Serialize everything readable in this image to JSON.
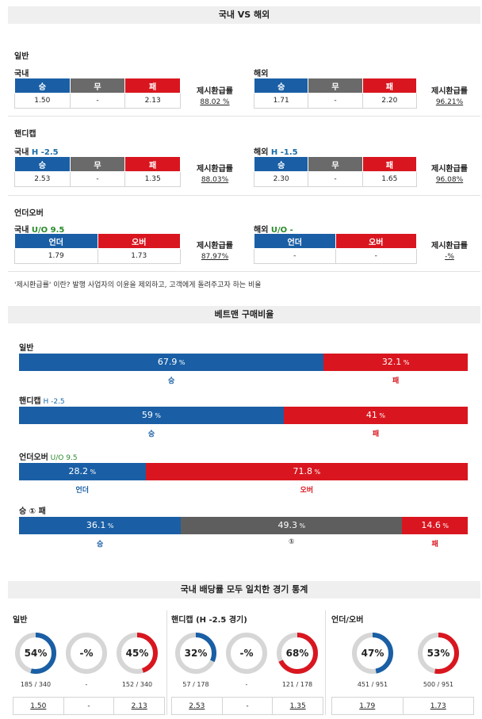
{
  "section1": {
    "title": "국내 VS 해외",
    "general": {
      "label": "일반",
      "domestic": {
        "label": "국내",
        "headers": [
          "승",
          "무",
          "패"
        ],
        "values": [
          "1.50",
          "-",
          "2.13"
        ],
        "return_label": "제시환급률",
        "return_value": "88.02 %"
      },
      "foreign": {
        "label": "해외",
        "headers": [
          "승",
          "무",
          "패"
        ],
        "values": [
          "1.71",
          "-",
          "2.20"
        ],
        "return_label": "제시환급률",
        "return_value": "96.21%"
      }
    },
    "handicap": {
      "label": "핸디캡",
      "domestic": {
        "label": "국내",
        "line": "H -2.5",
        "headers": [
          "승",
          "무",
          "패"
        ],
        "values": [
          "2.53",
          "-",
          "1.35"
        ],
        "return_label": "제시환급률",
        "return_value": "88.03%"
      },
      "foreign": {
        "label": "해외",
        "line": "H -1.5",
        "headers": [
          "승",
          "무",
          "패"
        ],
        "values": [
          "2.30",
          "-",
          "1.65"
        ],
        "return_label": "제시환급률",
        "return_value": "96.08%"
      }
    },
    "overunder": {
      "label": "언더오버",
      "domestic": {
        "label": "국내",
        "line": "U/O 9.5",
        "headers": [
          "언더",
          "오버"
        ],
        "values": [
          "1.79",
          "1.73"
        ],
        "return_label": "제시환급률",
        "return_value": "87.97%"
      },
      "foreign": {
        "label": "해외",
        "line": "U/O -",
        "headers": [
          "언더",
          "오버"
        ],
        "values": [
          "-",
          "-"
        ],
        "return_label": "제시환급률",
        "return_value": "-%"
      }
    },
    "note": "'제시환급률' 이란? 발행 사업자의 이윤을 제외하고, 고객에게 돌려주고자 하는 비율"
  },
  "section2": {
    "title": "베트맨 구매비율",
    "percent_sign": "%",
    "rows": [
      {
        "label": "일반",
        "line": "",
        "segments": [
          {
            "value": 67.9,
            "text": "67.9",
            "caption": "승",
            "color": "blue"
          },
          {
            "value": 32.1,
            "text": "32.1",
            "caption": "패",
            "color": "red"
          }
        ]
      },
      {
        "label": "핸디캡",
        "line": "H -2.5",
        "segments": [
          {
            "value": 59,
            "text": "59",
            "caption": "승",
            "color": "blue"
          },
          {
            "value": 41,
            "text": "41",
            "caption": "패",
            "color": "red"
          }
        ]
      },
      {
        "label": "언더오버",
        "line": "U/O 9.5",
        "segments": [
          {
            "value": 28.2,
            "text": "28.2",
            "caption": "언더",
            "color": "blue"
          },
          {
            "value": 71.8,
            "text": "71.8",
            "caption": "오버",
            "color": "red"
          }
        ]
      },
      {
        "label": "승 ① 패",
        "line": "",
        "segments": [
          {
            "value": 36.1,
            "text": "36.1",
            "caption": "승",
            "color": "blue"
          },
          {
            "value": 49.3,
            "text": "49.3",
            "caption": "①",
            "color": "gray"
          },
          {
            "value": 14.6,
            "text": "14.6",
            "caption": "패",
            "color": "red"
          }
        ]
      }
    ]
  },
  "section3": {
    "title": "국내 배당률 모두 일치한 경기 통계",
    "groups": [
      {
        "label": "일반",
        "donuts": [
          {
            "pct": 54,
            "text": "54%",
            "count": "185 / 340",
            "color": "#1a5fa5"
          },
          {
            "pct": 0,
            "text": "-%",
            "count": "-",
            "color": "#1a5fa5"
          },
          {
            "pct": 45,
            "text": "45%",
            "count": "152 / 340",
            "color": "#d9161f"
          }
        ],
        "odds": [
          "1.50",
          "-",
          "2.13"
        ]
      },
      {
        "label": "핸디캡 (H -2.5 경기)",
        "donuts": [
          {
            "pct": 32,
            "text": "32%",
            "count": "57 / 178",
            "color": "#1a5fa5"
          },
          {
            "pct": 0,
            "text": "-%",
            "count": "-",
            "color": "#1a5fa5"
          },
          {
            "pct": 68,
            "text": "68%",
            "count": "121 / 178",
            "color": "#d9161f"
          }
        ],
        "odds": [
          "2.53",
          "-",
          "1.35"
        ]
      },
      {
        "label": "언더/오버",
        "donuts": [
          {
            "pct": 47,
            "text": "47%",
            "count": "451 / 951",
            "color": "#1a5fa5"
          },
          {
            "pct": 53,
            "text": "53%",
            "count": "500 / 951",
            "color": "#d9161f"
          }
        ],
        "odds": [
          "1.79",
          "1.73"
        ]
      }
    ]
  }
}
